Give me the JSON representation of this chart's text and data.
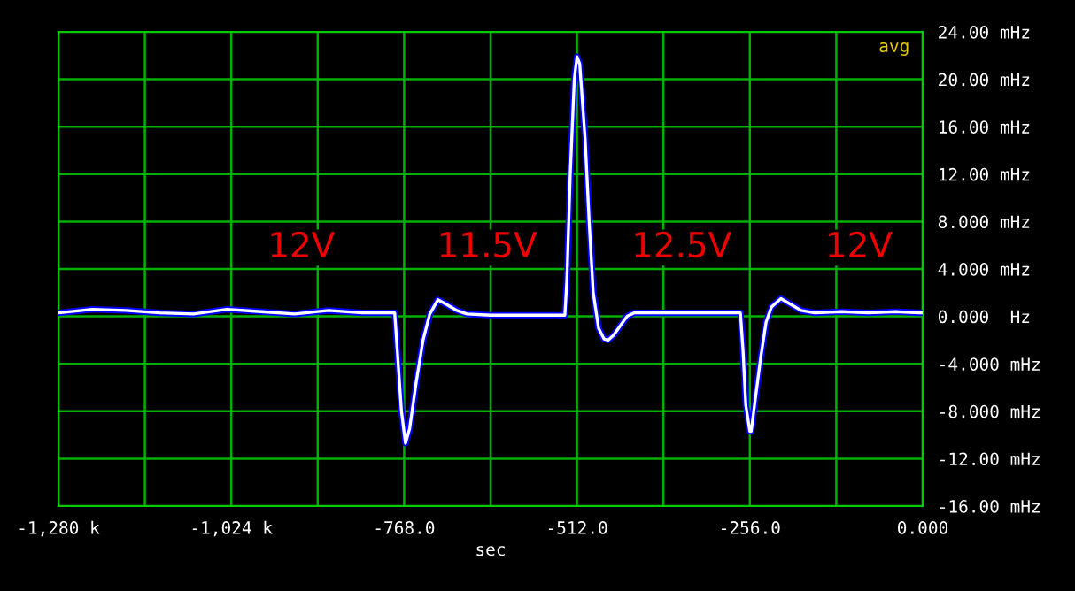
{
  "chart_data": {
    "type": "line",
    "xlabel": "sec",
    "x": [
      -1280,
      -1230,
      -1180,
      -1130,
      -1080,
      -1030,
      -980,
      -930,
      -880,
      -830,
      -800,
      -782,
      -778,
      -772,
      -766,
      -760,
      -750,
      -740,
      -730,
      -718,
      -705,
      -690,
      -675,
      -640,
      -600,
      -560,
      -530,
      -527,
      -522,
      -516,
      -512,
      -508,
      -500,
      -494,
      -488,
      -480,
      -472,
      -466,
      -458,
      -448,
      -438,
      -427,
      -400,
      -360,
      -320,
      -290,
      -270,
      -266,
      -262,
      -256,
      -254,
      -248,
      -240,
      -232,
      -224,
      -210,
      -195,
      -180,
      -160,
      -120,
      -80,
      -40,
      -5,
      0
    ],
    "series": [
      {
        "color": "#0000ff",
        "values": [
          0.3,
          0.6,
          0.5,
          0.3,
          0.2,
          0.6,
          0.4,
          0.2,
          0.5,
          0.3,
          0.3,
          0.3,
          -3,
          -8,
          -10.7,
          -9.5,
          -5.5,
          -2,
          0.2,
          1.4,
          1.0,
          0.5,
          0.2,
          0.1,
          0.1,
          0.1,
          0.1,
          3,
          12,
          20,
          21.9,
          21.3,
          15,
          8,
          2,
          -1,
          -1.9,
          -2.0,
          -1.6,
          -0.8,
          0,
          0.3,
          0.3,
          0.3,
          0.3,
          0.3,
          0.3,
          -3,
          -7.5,
          -9.7,
          -9.7,
          -7,
          -3.5,
          -0.5,
          0.8,
          1.5,
          1.0,
          0.5,
          0.3,
          0.4,
          0.3,
          0.4,
          0.3,
          0.3
        ]
      },
      {
        "color": "#ffffff",
        "values": [
          0.3,
          0.6,
          0.5,
          0.3,
          0.2,
          0.6,
          0.4,
          0.2,
          0.5,
          0.3,
          0.3,
          0.3,
          -3,
          -8,
          -10.7,
          -9.5,
          -5.5,
          -2,
          0.2,
          1.4,
          1.0,
          0.5,
          0.2,
          0.1,
          0.1,
          0.1,
          0.1,
          3,
          12,
          20,
          21.9,
          21.3,
          15,
          8,
          2,
          -1,
          -1.9,
          -2.0,
          -1.6,
          -0.8,
          0,
          0.3,
          0.3,
          0.3,
          0.3,
          0.3,
          0.3,
          -3,
          -7.5,
          -9.7,
          -9.7,
          -7,
          -3.5,
          -0.5,
          0.8,
          1.5,
          1.0,
          0.5,
          0.3,
          0.4,
          0.3,
          0.4,
          0.3,
          0.3
        ]
      }
    ],
    "xlim": [
      -1280,
      0
    ],
    "xticks": [
      {
        "value": -1280,
        "label": "-1,280 k"
      },
      {
        "value": -1152,
        "label": null
      },
      {
        "value": -1024,
        "label": "-1,024 k"
      },
      {
        "value": -896,
        "label": null
      },
      {
        "value": -768,
        "label": "-768.0"
      },
      {
        "value": -640,
        "label": null
      },
      {
        "value": -512,
        "label": "-512.0"
      },
      {
        "value": -384,
        "label": null
      },
      {
        "value": -256,
        "label": "-256.0"
      },
      {
        "value": -128,
        "label": null
      },
      {
        "value": 0,
        "label": "0.000"
      }
    ],
    "ylim": [
      -16,
      24
    ],
    "yticks": [
      {
        "value": 24,
        "label": "24.00 mHz"
      },
      {
        "value": 20,
        "label": "20.00 mHz"
      },
      {
        "value": 16,
        "label": "16.00 mHz"
      },
      {
        "value": 12,
        "label": "12.00 mHz"
      },
      {
        "value": 8,
        "label": "8.000 mHz"
      },
      {
        "value": 4,
        "label": "4.000 mHz"
      },
      {
        "value": 0,
        "label": "0.000  Hz"
      },
      {
        "value": -4,
        "label": "-4.000 mHz"
      },
      {
        "value": -8,
        "label": "-8.000 mHz"
      },
      {
        "value": -12,
        "label": "-12.00 mHz"
      },
      {
        "value": -16,
        "label": "-16.00 mHz"
      }
    ],
    "grid": true,
    "annotations": [
      "12V",
      "11.5V",
      "12.5V",
      "12V",
      "avg"
    ]
  }
}
